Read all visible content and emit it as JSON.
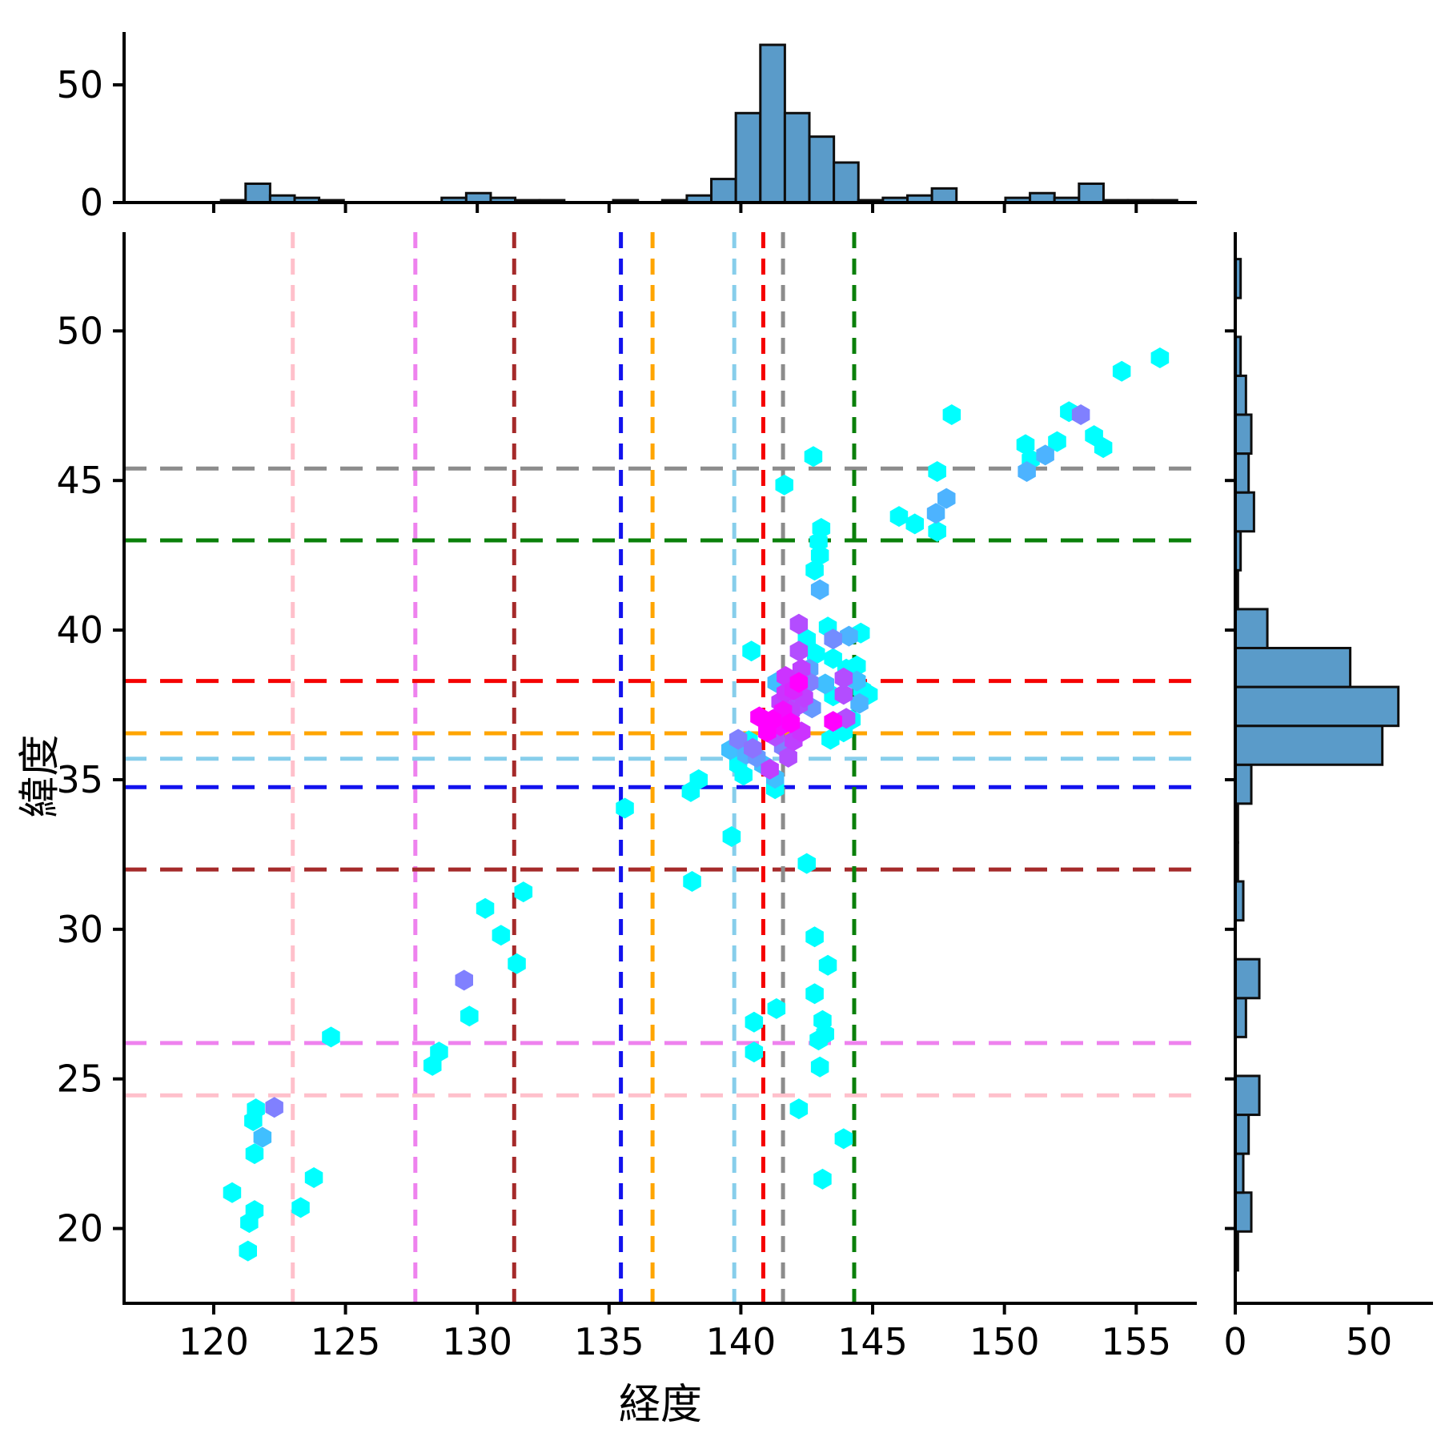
{
  "figure": {
    "background": "#ffffff",
    "xlabel": "経度",
    "ylabel": "緯度"
  },
  "chart_data": {
    "type": "scatter",
    "marker": "hexagon",
    "colormap": "cool",
    "xlabel": "経度",
    "ylabel": "緯度",
    "x_axis": {
      "lim": [
        116.6,
        157.3
      ],
      "ticks": [
        120,
        125,
        130,
        135,
        140,
        145,
        150,
        155
      ]
    },
    "y_axis": {
      "lim": [
        17.5,
        53.3
      ],
      "ticks": [
        20,
        25,
        30,
        35,
        40,
        45,
        50
      ]
    },
    "hist_style": {
      "fill": "#5A9BC9",
      "edge": "#0E0E0E"
    },
    "points": [
      [
        120.7,
        21.2,
        0
      ],
      [
        121.3,
        19.25,
        0
      ],
      [
        121.35,
        20.2,
        0
      ],
      [
        121.55,
        20.6,
        0
      ],
      [
        121.55,
        22.5,
        0
      ],
      [
        121.5,
        23.6,
        0
      ],
      [
        121.6,
        24.0,
        0
      ],
      [
        121.85,
        23.05,
        0.25
      ],
      [
        122.3,
        24.05,
        0.5
      ],
      [
        123.3,
        20.7,
        0
      ],
      [
        123.8,
        21.7,
        0
      ],
      [
        124.45,
        26.4,
        0
      ],
      [
        128.3,
        25.45,
        0
      ],
      [
        128.55,
        25.9,
        0
      ],
      [
        129.5,
        28.3,
        0.5
      ],
      [
        129.7,
        27.1,
        0
      ],
      [
        130.3,
        30.7,
        0
      ],
      [
        130.9,
        29.8,
        0
      ],
      [
        131.5,
        28.85,
        0
      ],
      [
        131.75,
        31.25,
        0
      ],
      [
        135.6,
        34.05,
        0
      ],
      [
        138.1,
        34.6,
        0
      ],
      [
        138.4,
        35.0,
        0
      ],
      [
        138.15,
        31.6,
        0
      ],
      [
        139.65,
        33.1,
        0
      ],
      [
        142.5,
        32.2,
        0
      ],
      [
        142.8,
        29.75,
        0
      ],
      [
        143.3,
        28.8,
        0
      ],
      [
        142.8,
        27.85,
        0
      ],
      [
        143.1,
        26.95,
        0
      ],
      [
        143.2,
        26.5,
        0
      ],
      [
        142.95,
        26.3,
        0
      ],
      [
        141.35,
        27.35,
        0
      ],
      [
        140.5,
        26.9,
        0
      ],
      [
        140.5,
        25.9,
        0
      ],
      [
        143.0,
        25.4,
        0
      ],
      [
        142.2,
        24.0,
        0
      ],
      [
        143.9,
        23.0,
        0
      ],
      [
        143.1,
        21.65,
        0
      ],
      [
        139.6,
        36.0,
        0.25
      ],
      [
        139.9,
        36.35,
        0.5
      ],
      [
        140.3,
        36.3,
        0
      ],
      [
        139.9,
        35.5,
        0
      ],
      [
        140.1,
        35.15,
        0
      ],
      [
        140.45,
        36.05,
        0.55
      ],
      [
        140.2,
        35.85,
        0.3
      ],
      [
        140.6,
        35.75,
        0.4
      ],
      [
        140.85,
        35.5,
        0.25
      ],
      [
        141.1,
        35.35,
        0.75
      ],
      [
        141.3,
        35.05,
        0.25
      ],
      [
        141.3,
        34.7,
        0
      ],
      [
        141.3,
        36.45,
        0.7
      ],
      [
        141.5,
        36.8,
        0.95
      ],
      [
        141.6,
        36.1,
        0.5
      ],
      [
        141.8,
        35.75,
        0.7
      ],
      [
        142.0,
        36.3,
        0.75
      ],
      [
        140.7,
        37.1,
        1
      ],
      [
        141.0,
        36.6,
        1
      ],
      [
        141.2,
        37.0,
        1
      ],
      [
        141.4,
        37.1,
        0.85
      ],
      [
        141.6,
        37.3,
        0.95
      ],
      [
        141.9,
        36.9,
        1
      ],
      [
        142.3,
        36.6,
        0.8
      ],
      [
        141.9,
        37.3,
        0.75
      ],
      [
        141.5,
        37.6,
        0.75
      ],
      [
        142.2,
        37.5,
        0.7
      ],
      [
        142.4,
        37.75,
        0.75
      ],
      [
        142.7,
        37.4,
        0.4
      ],
      [
        141.7,
        37.9,
        0.8
      ],
      [
        142.0,
        38.0,
        0.85
      ],
      [
        143.4,
        36.35,
        0
      ],
      [
        143.9,
        36.6,
        0
      ],
      [
        144.2,
        37.0,
        0
      ],
      [
        144.0,
        37.05,
        0.7
      ],
      [
        143.5,
        36.95,
        1
      ],
      [
        143.5,
        37.8,
        0
      ],
      [
        143.9,
        37.85,
        0.7
      ],
      [
        144.85,
        37.85,
        0
      ],
      [
        144.5,
        37.55,
        0.3
      ],
      [
        141.7,
        38.45,
        0.8
      ],
      [
        142.2,
        38.25,
        1
      ],
      [
        141.35,
        38.25,
        0.25
      ],
      [
        142.6,
        38.25,
        0.5
      ],
      [
        143.2,
        38.2,
        0.25
      ],
      [
        143.9,
        38.4,
        0.7
      ],
      [
        144.4,
        38.3,
        0.25
      ],
      [
        144.6,
        38.0,
        0
      ],
      [
        142.3,
        38.7,
        0.75
      ],
      [
        142.6,
        38.7,
        0.35
      ],
      [
        144.0,
        38.7,
        0
      ],
      [
        144.4,
        38.8,
        0
      ],
      [
        140.4,
        39.3,
        0
      ],
      [
        142.2,
        39.3,
        0.7
      ],
      [
        142.85,
        39.2,
        0
      ],
      [
        143.5,
        39.05,
        0
      ],
      [
        142.5,
        39.7,
        0
      ],
      [
        143.5,
        39.7,
        0.45
      ],
      [
        144.1,
        39.8,
        0.3
      ],
      [
        142.2,
        40.2,
        0.7
      ],
      [
        143.3,
        40.1,
        0
      ],
      [
        144.55,
        39.9,
        0
      ],
      [
        143.0,
        41.35,
        0.3
      ],
      [
        142.8,
        42.0,
        0
      ],
      [
        143.0,
        42.5,
        0
      ],
      [
        142.95,
        42.95,
        0
      ],
      [
        143.05,
        43.4,
        0
      ],
      [
        141.65,
        44.85,
        0
      ],
      [
        142.75,
        45.8,
        0
      ],
      [
        146.0,
        43.8,
        0
      ],
      [
        146.6,
        43.55,
        0
      ],
      [
        147.4,
        43.9,
        0.3
      ],
      [
        147.8,
        44.4,
        0.3
      ],
      [
        147.45,
        43.3,
        0
      ],
      [
        147.45,
        45.3,
        0
      ],
      [
        148.0,
        47.2,
        0
      ],
      [
        150.8,
        46.2,
        0
      ],
      [
        150.85,
        45.3,
        0.3
      ],
      [
        151.0,
        45.7,
        0
      ],
      [
        151.55,
        45.85,
        0.3
      ],
      [
        152.0,
        46.3,
        0
      ],
      [
        152.45,
        47.3,
        0
      ],
      [
        152.9,
        47.2,
        0.5
      ],
      [
        153.4,
        46.5,
        0
      ],
      [
        153.75,
        46.1,
        0
      ],
      [
        154.45,
        48.65,
        0
      ],
      [
        155.9,
        49.1,
        0
      ]
    ],
    "reference_lines": [
      {
        "name": "pink",
        "hex": "#FFC0CB",
        "x": 123.0,
        "y": 24.45
      },
      {
        "name": "violet",
        "hex": "#EE82EE",
        "x": 127.65,
        "y": 26.2
      },
      {
        "name": "darkred",
        "hex": "#A52A2A",
        "x": 131.4,
        "y": 32.0
      },
      {
        "name": "blue",
        "hex": "#1212EE",
        "x": 135.45,
        "y": 34.75
      },
      {
        "name": "orange",
        "hex": "#FFA500",
        "x": 136.65,
        "y": 36.55
      },
      {
        "name": "skyblue",
        "hex": "#87CEEB",
        "x": 139.75,
        "y": 35.7
      },
      {
        "name": "red",
        "hex": "#F50000",
        "x": 140.85,
        "y": 38.3
      },
      {
        "name": "gray",
        "hex": "#8C8C8C",
        "x": 141.6,
        "y": 45.4
      },
      {
        "name": "green",
        "hex": "#0A800A",
        "x": 144.3,
        "y": 43.0
      }
    ],
    "top_histogram": {
      "bin_width": 0.93,
      "ylim": [
        0,
        72
      ],
      "yticks": [
        0,
        50
      ],
      "bins": [
        [
          120.28,
          1
        ],
        [
          121.21,
          8
        ],
        [
          122.14,
          3
        ],
        [
          123.07,
          2
        ],
        [
          124.0,
          1
        ],
        [
          128.65,
          2
        ],
        [
          129.58,
          4
        ],
        [
          130.51,
          2
        ],
        [
          131.44,
          1
        ],
        [
          132.37,
          1
        ],
        [
          135.16,
          1
        ],
        [
          137.02,
          1
        ],
        [
          137.95,
          3
        ],
        [
          138.88,
          10
        ],
        [
          139.81,
          38
        ],
        [
          140.74,
          67
        ],
        [
          141.67,
          38
        ],
        [
          142.6,
          28
        ],
        [
          143.53,
          17
        ],
        [
          144.46,
          1
        ],
        [
          145.39,
          2
        ],
        [
          146.32,
          3
        ],
        [
          147.25,
          6
        ],
        [
          150.04,
          2
        ],
        [
          150.97,
          4
        ],
        [
          151.9,
          2
        ],
        [
          152.83,
          8
        ],
        [
          153.76,
          1
        ],
        [
          154.69,
          1
        ],
        [
          155.62,
          1
        ]
      ]
    },
    "right_histogram": {
      "bin_width": 1.3,
      "xlim": [
        0,
        74
      ],
      "xticks": [
        0,
        50
      ],
      "bins": [
        [
          18.6,
          1
        ],
        [
          19.9,
          6
        ],
        [
          21.2,
          3
        ],
        [
          22.5,
          5
        ],
        [
          23.8,
          9
        ],
        [
          26.4,
          4
        ],
        [
          27.7,
          9
        ],
        [
          30.3,
          3
        ],
        [
          31.6,
          1
        ],
        [
          32.9,
          1
        ],
        [
          34.2,
          6
        ],
        [
          35.5,
          55
        ],
        [
          36.8,
          61
        ],
        [
          38.1,
          43
        ],
        [
          39.4,
          12
        ],
        [
          40.7,
          1
        ],
        [
          42.0,
          2
        ],
        [
          43.3,
          7
        ],
        [
          44.6,
          5
        ],
        [
          45.9,
          6
        ],
        [
          47.2,
          4
        ],
        [
          48.5,
          2
        ],
        [
          51.1,
          2
        ]
      ]
    }
  }
}
